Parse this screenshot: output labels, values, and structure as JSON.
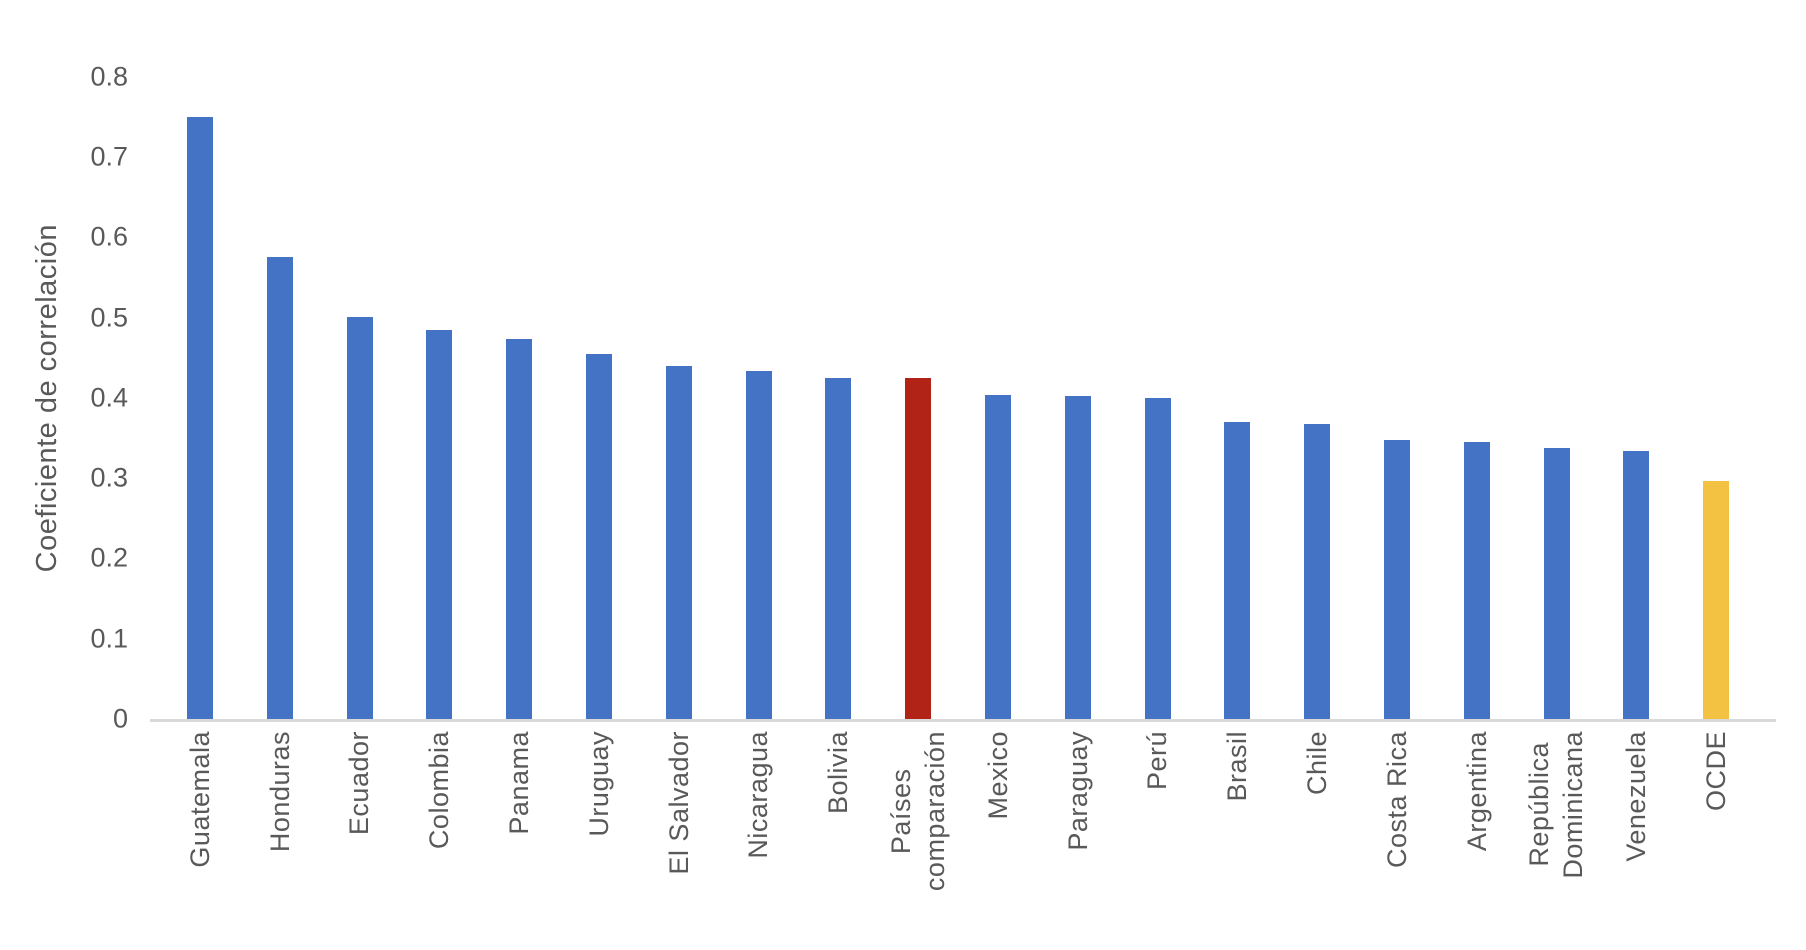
{
  "chart_data": {
    "type": "bar",
    "ylabel": "Coeficiente de correlación",
    "categories": [
      "Guatemala",
      "Honduras",
      "Ecuador",
      "Colombia",
      "Panama",
      "Uruguay",
      "El Salvador",
      "Nicaragua",
      "Bolivia",
      "Países\ncomparación",
      "Mexico",
      "Paraguay",
      "Perú",
      "Brasil",
      "Chile",
      "Costa Rica",
      "Argentina",
      "República\nDominicana",
      "Venezuela",
      "OCDE"
    ],
    "values": [
      0.75,
      0.575,
      0.501,
      0.485,
      0.473,
      0.455,
      0.44,
      0.433,
      0.425,
      0.425,
      0.403,
      0.402,
      0.4,
      0.37,
      0.367,
      0.348,
      0.345,
      0.338,
      0.334,
      0.297
    ],
    "bar_colors": [
      "#4472C4",
      "#4472C4",
      "#4472C4",
      "#4472C4",
      "#4472C4",
      "#4472C4",
      "#4472C4",
      "#4472C4",
      "#4472C4",
      "#B22317",
      "#4472C4",
      "#4472C4",
      "#4472C4",
      "#4472C4",
      "#4472C4",
      "#4472C4",
      "#4472C4",
      "#4472C4",
      "#4472C4",
      "#F4C242"
    ],
    "yticks": [
      "0",
      "0.1",
      "0.2",
      "0.3",
      "0.4",
      "0.5",
      "0.6",
      "0.7",
      "0.8"
    ],
    "ylim": [
      0,
      0.8
    ],
    "grid": false,
    "legend": false,
    "colors": {
      "bar_default": "#4472C4",
      "bar_highlight_red": "#B22317",
      "bar_highlight_gold": "#F4C242",
      "axis_text": "#595959",
      "axis_line": "#D9D9D9"
    }
  }
}
